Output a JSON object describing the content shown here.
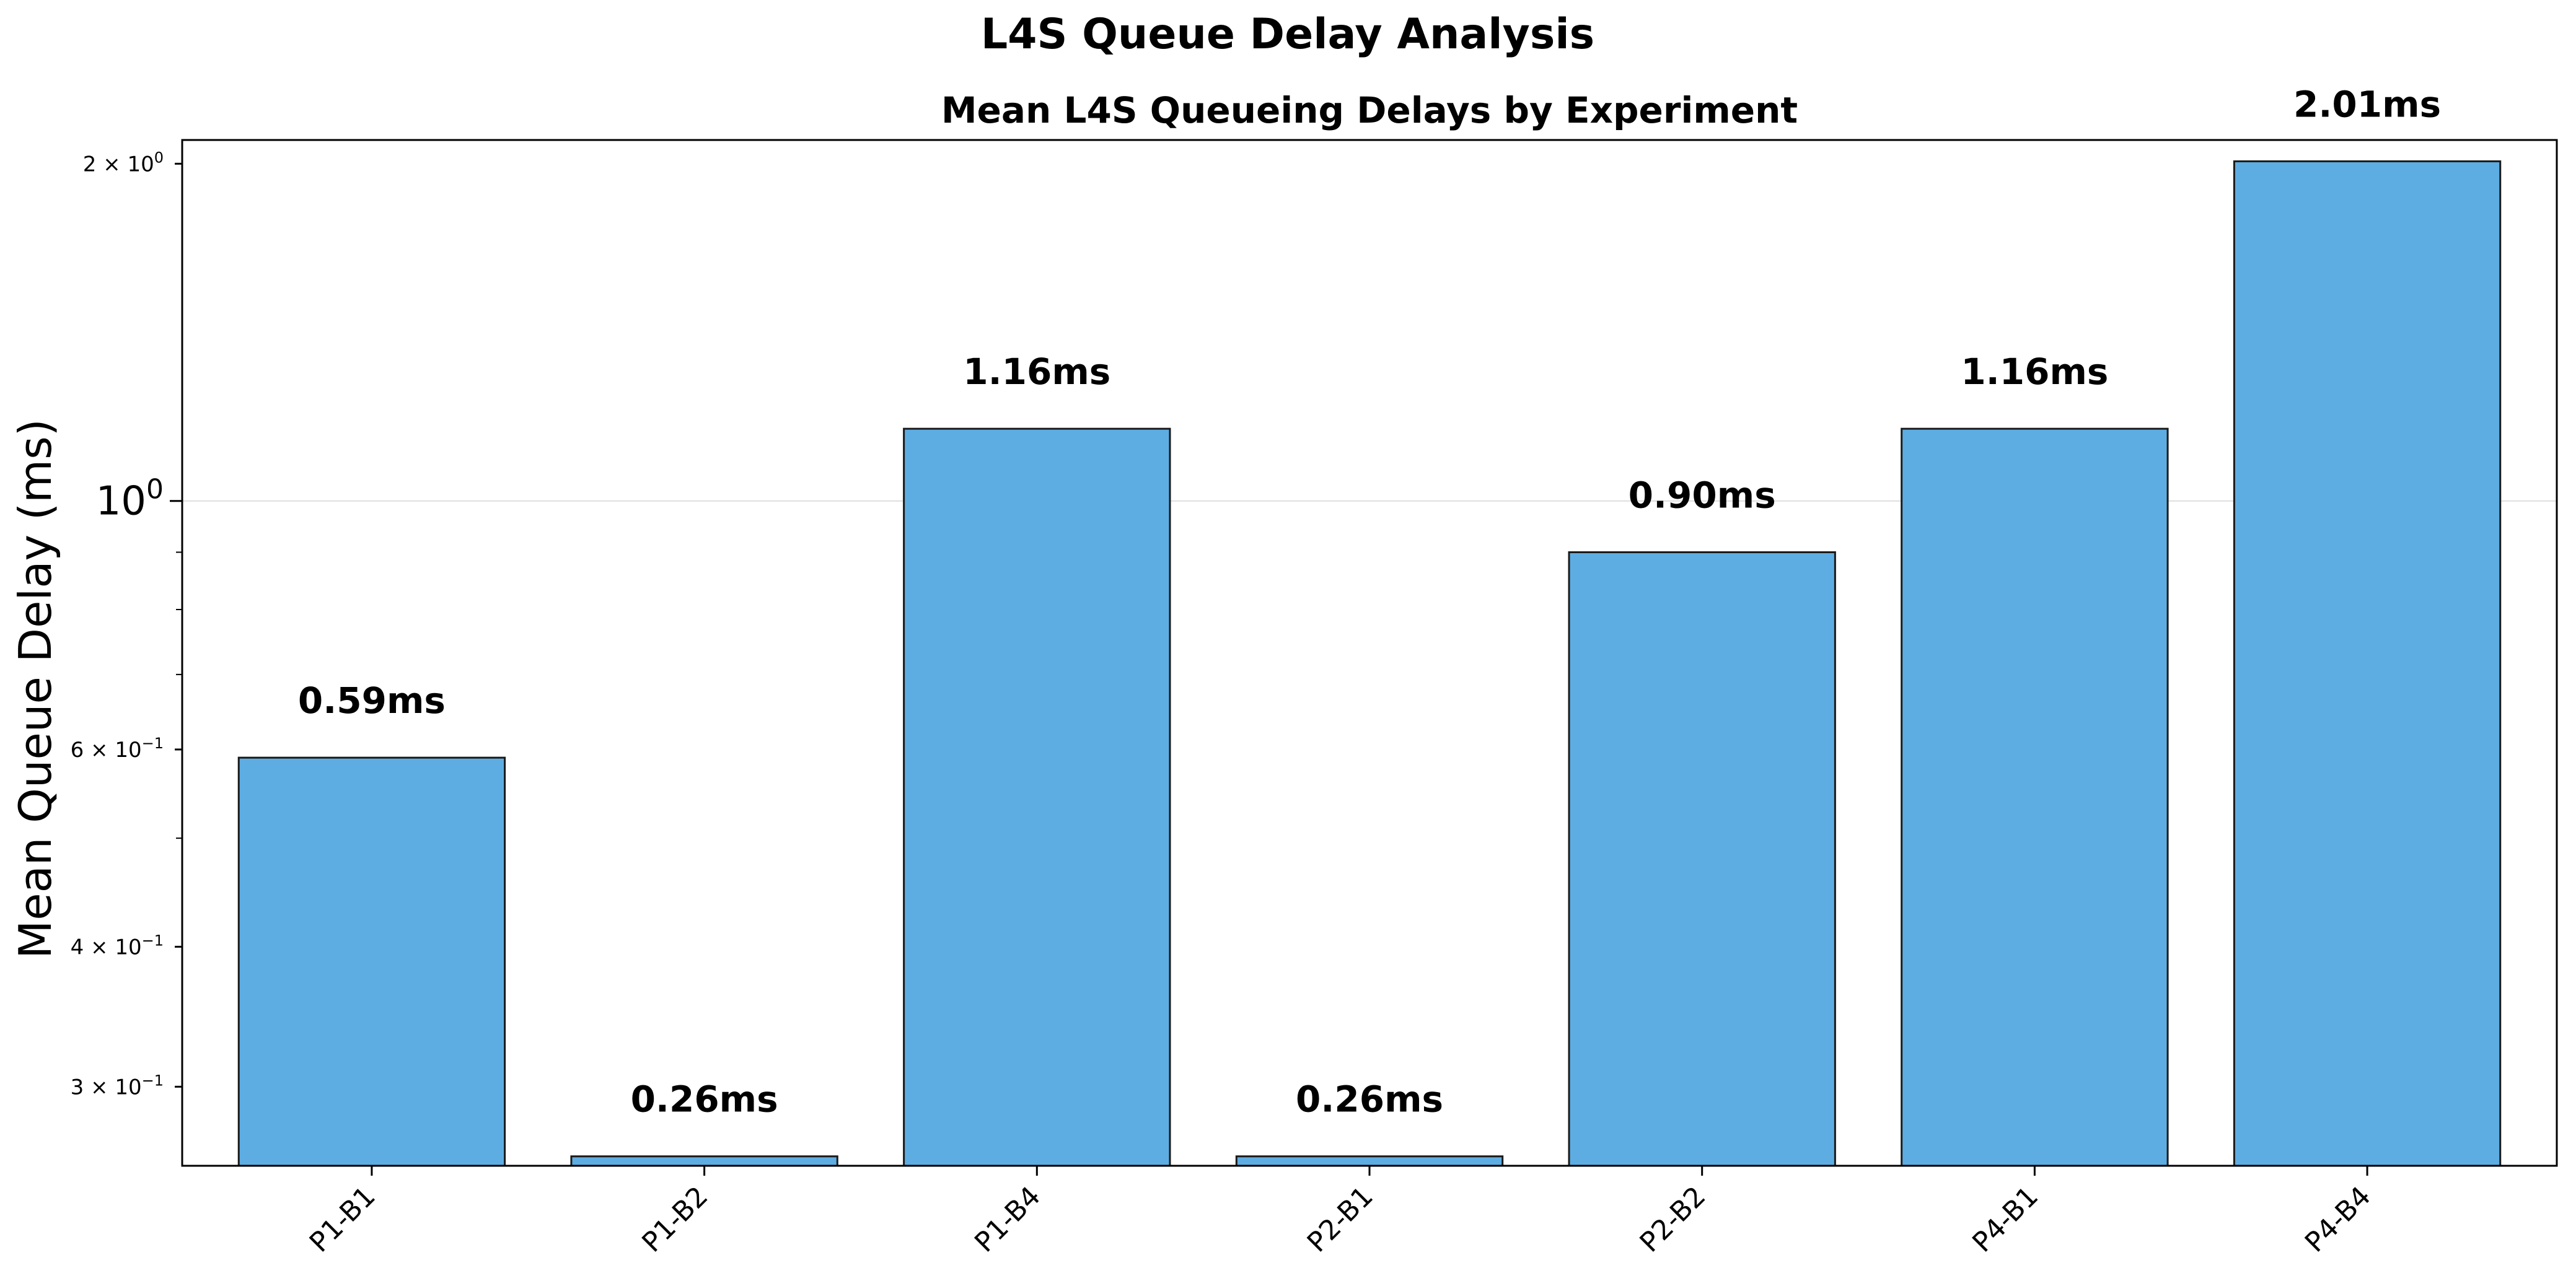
{
  "chart_data": {
    "type": "bar",
    "suptitle": "L4S Queue Delay Analysis",
    "title": "Mean L4S Queueing Delays by Experiment",
    "xlabel": "",
    "ylabel": "Mean Queue Delay (ms)",
    "yscale": "log",
    "ylim": [
      0.255,
      2.1
    ],
    "grid": "y-major",
    "categories": [
      "P1-B1",
      "P1-B2",
      "P1-B4",
      "P2-B1",
      "P2-B2",
      "P4-B1",
      "P4-B4"
    ],
    "values": [
      0.59,
      0.26,
      1.16,
      0.26,
      0.9,
      1.16,
      2.01
    ],
    "data_labels": [
      "0.59ms",
      "0.26ms",
      "1.16ms",
      "0.26ms",
      "0.90ms",
      "1.16ms",
      "2.01ms"
    ],
    "yticks": [
      {
        "value": 2,
        "base": "2 × 10",
        "exp": "0"
      },
      {
        "value": 1,
        "base": "10",
        "exp": "0"
      },
      {
        "value": 0.6,
        "base": "6 × 10",
        "exp": "−1"
      },
      {
        "value": 0.4,
        "base": "4 × 10",
        "exp": "−1"
      },
      {
        "value": 0.3,
        "base": "3 × 10",
        "exp": "−1"
      }
    ],
    "minor_yticks": [
      0.5,
      0.7,
      0.8,
      0.9
    ],
    "bar_color": "#5dade2",
    "edge_color": "#1a1a1a",
    "grid_color": "#dddddd"
  }
}
